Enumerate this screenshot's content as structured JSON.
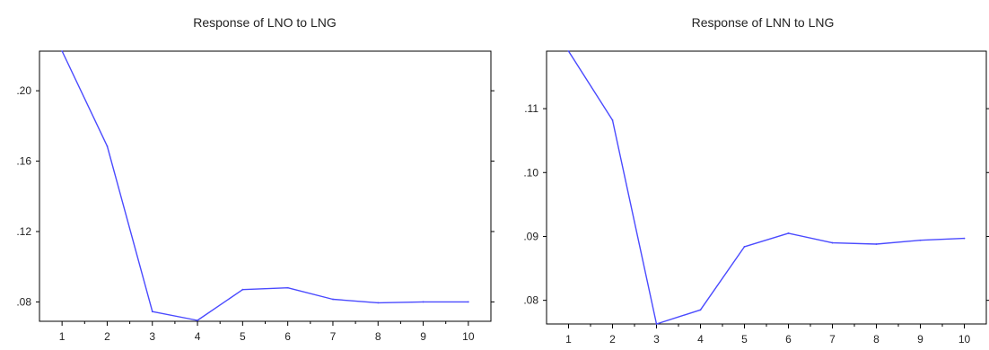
{
  "chart_data": [
    {
      "type": "line",
      "title": "Response of LNO to LNG",
      "xlabel": "",
      "ylabel": "",
      "categories": [
        "1",
        "2",
        "3",
        "4",
        "5",
        "6",
        "7",
        "8",
        "9",
        "10"
      ],
      "x": [
        1,
        2,
        3,
        4,
        5,
        6,
        7,
        8,
        9,
        10
      ],
      "series": [
        {
          "values": [
            0.2225,
            0.1685,
            0.0745,
            0.0695,
            0.087,
            0.088,
            0.0815,
            0.0795,
            0.08,
            0.08
          ]
        }
      ],
      "yticks": [
        0.08,
        0.12,
        0.16,
        0.2
      ],
      "ytick_labels": [
        ".08",
        ".12",
        ".16",
        ".20"
      ],
      "ylim": [
        0.069,
        0.2225
      ],
      "xlim": [
        0.5,
        10.5
      ],
      "grid": false,
      "line_color": "#4a4aff"
    },
    {
      "type": "line",
      "title": "Response of LNN to LNG",
      "xlabel": "",
      "ylabel": "",
      "categories": [
        "1",
        "2",
        "3",
        "4",
        "5",
        "6",
        "7",
        "8",
        "9",
        "10"
      ],
      "x": [
        1,
        2,
        3,
        4,
        5,
        6,
        7,
        8,
        9,
        10
      ],
      "series": [
        {
          "values": [
            0.119,
            0.1082,
            0.0763,
            0.0785,
            0.0884,
            0.0905,
            0.089,
            0.0888,
            0.0894,
            0.0897
          ]
        }
      ],
      "yticks": [
        0.08,
        0.09,
        0.1,
        0.11
      ],
      "ytick_labels": [
        ".08",
        ".09",
        ".10",
        ".11"
      ],
      "ylim": [
        0.0763,
        0.119
      ],
      "xlim": [
        0.5,
        10.5
      ],
      "grid": false,
      "line_color": "#4a4aff"
    }
  ]
}
